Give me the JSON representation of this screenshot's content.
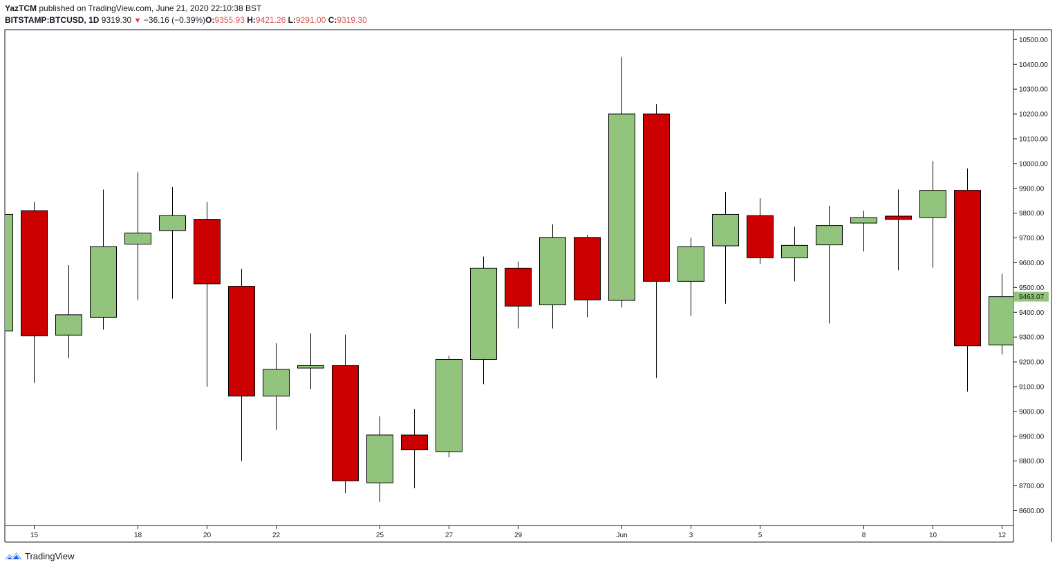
{
  "publish": {
    "author": "YazTCM",
    "text": "published on TradingView.com, June 21, 2020 22:10:38 BST"
  },
  "legend": {
    "symbol": "BITSTAMP:BTCUSD, 1D",
    "last": "9319.30",
    "change": "−36.16 (−0.39%)",
    "o_label": "O:",
    "o": "9355.93",
    "h_label": "H:",
    "h": "9421.26",
    "l_label": "L:",
    "l": "9291.00",
    "c_label": "C:",
    "c": "9319.30"
  },
  "footer": {
    "brand": "TradingView"
  },
  "colors": {
    "up": "#93c47d",
    "down": "#cc0000",
    "wick": "#000000",
    "label_bg": "#93c47d"
  },
  "chart_data": {
    "type": "candlestick",
    "y_axis": {
      "ylim": [
        8540,
        10540
      ],
      "ticks": [
        8600,
        8700,
        8800,
        8900,
        9000,
        9100,
        9200,
        9300,
        9400,
        9500,
        9600,
        9700,
        9800,
        9900,
        10000,
        10100,
        10200,
        10300,
        10400,
        10500
      ],
      "tick_labels": [
        "8600.00",
        "8700.00",
        "8800.00",
        "8900.00",
        "9000.00",
        "9100.00",
        "9200.00",
        "9300.00",
        "9400.00",
        "9500.00",
        "9600.00",
        "9700.00",
        "9800.00",
        "9900.00",
        "10000.00",
        "10100.00",
        "10200.00",
        "10300.00",
        "10400.00",
        "10500.00"
      ]
    },
    "x_axis": {
      "ticks": [
        {
          "index": 1,
          "label": "15"
        },
        {
          "index": 4,
          "label": "18"
        },
        {
          "index": 6,
          "label": "20"
        },
        {
          "index": 8,
          "label": "22"
        },
        {
          "index": 11,
          "label": "25"
        },
        {
          "index": 13,
          "label": "27"
        },
        {
          "index": 15,
          "label": "29"
        },
        {
          "index": 18,
          "label": "Jun"
        },
        {
          "index": 20,
          "label": "3"
        },
        {
          "index": 22,
          "label": "5"
        },
        {
          "index": 25,
          "label": "8"
        },
        {
          "index": 27,
          "label": "10"
        },
        {
          "index": 29,
          "label": "12"
        }
      ]
    },
    "price_label": {
      "value": 9463.07,
      "text": "9463.07"
    },
    "candles": [
      {
        "date": "May 14",
        "open": 9325,
        "high": 9800,
        "low": 9300,
        "close": 9795
      },
      {
        "date": "May 15",
        "open": 9810,
        "high": 9845,
        "low": 9115,
        "close": 9305
      },
      {
        "date": "May 16",
        "open": 9308,
        "high": 9590,
        "low": 9215,
        "close": 9390
      },
      {
        "date": "May 17",
        "open": 9380,
        "high": 9895,
        "low": 9330,
        "close": 9665
      },
      {
        "date": "May 18",
        "open": 9675,
        "high": 9965,
        "low": 9450,
        "close": 9720
      },
      {
        "date": "May 19",
        "open": 9730,
        "high": 9905,
        "low": 9455,
        "close": 9790
      },
      {
        "date": "May 20",
        "open": 9775,
        "high": 9845,
        "low": 9100,
        "close": 9515
      },
      {
        "date": "May 21",
        "open": 9505,
        "high": 9575,
        "low": 8800,
        "close": 9062
      },
      {
        "date": "May 22",
        "open": 9062,
        "high": 9275,
        "low": 8925,
        "close": 9170
      },
      {
        "date": "May 23",
        "open": 9175,
        "high": 9315,
        "low": 9090,
        "close": 9185
      },
      {
        "date": "May 24",
        "open": 9185,
        "high": 9310,
        "low": 8670,
        "close": 8720
      },
      {
        "date": "May 25",
        "open": 8712,
        "high": 8980,
        "low": 8635,
        "close": 8905
      },
      {
        "date": "May 26",
        "open": 8905,
        "high": 9010,
        "low": 8690,
        "close": 8845
      },
      {
        "date": "May 27",
        "open": 8838,
        "high": 9225,
        "low": 8815,
        "close": 9210
      },
      {
        "date": "May 28",
        "open": 9210,
        "high": 9625,
        "low": 9110,
        "close": 9578
      },
      {
        "date": "May 29",
        "open": 9578,
        "high": 9605,
        "low": 9335,
        "close": 9425
      },
      {
        "date": "May 30",
        "open": 9430,
        "high": 9755,
        "low": 9335,
        "close": 9702
      },
      {
        "date": "May 31",
        "open": 9702,
        "high": 9712,
        "low": 9380,
        "close": 9450
      },
      {
        "date": "Jun 1",
        "open": 9448,
        "high": 10430,
        "low": 9420,
        "close": 10200
      },
      {
        "date": "Jun 2",
        "open": 10200,
        "high": 10240,
        "low": 9135,
        "close": 9525
      },
      {
        "date": "Jun 3",
        "open": 9525,
        "high": 9700,
        "low": 9385,
        "close": 9665
      },
      {
        "date": "Jun 4",
        "open": 9668,
        "high": 9885,
        "low": 9435,
        "close": 9795
      },
      {
        "date": "Jun 5",
        "open": 9790,
        "high": 9860,
        "low": 9595,
        "close": 9620
      },
      {
        "date": "Jun 6",
        "open": 9620,
        "high": 9745,
        "low": 9525,
        "close": 9670
      },
      {
        "date": "Jun 7",
        "open": 9672,
        "high": 9830,
        "low": 9355,
        "close": 9750
      },
      {
        "date": "Jun 8",
        "open": 9760,
        "high": 9810,
        "low": 9645,
        "close": 9782
      },
      {
        "date": "Jun 9",
        "open": 9788,
        "high": 9895,
        "low": 9570,
        "close": 9775
      },
      {
        "date": "Jun 10",
        "open": 9782,
        "high": 10010,
        "low": 9580,
        "close": 9892
      },
      {
        "date": "Jun 11",
        "open": 9892,
        "high": 9980,
        "low": 9080,
        "close": 9265
      },
      {
        "date": "Jun 12",
        "open": 9268,
        "high": 9555,
        "low": 9230,
        "close": 9463
      }
    ]
  }
}
